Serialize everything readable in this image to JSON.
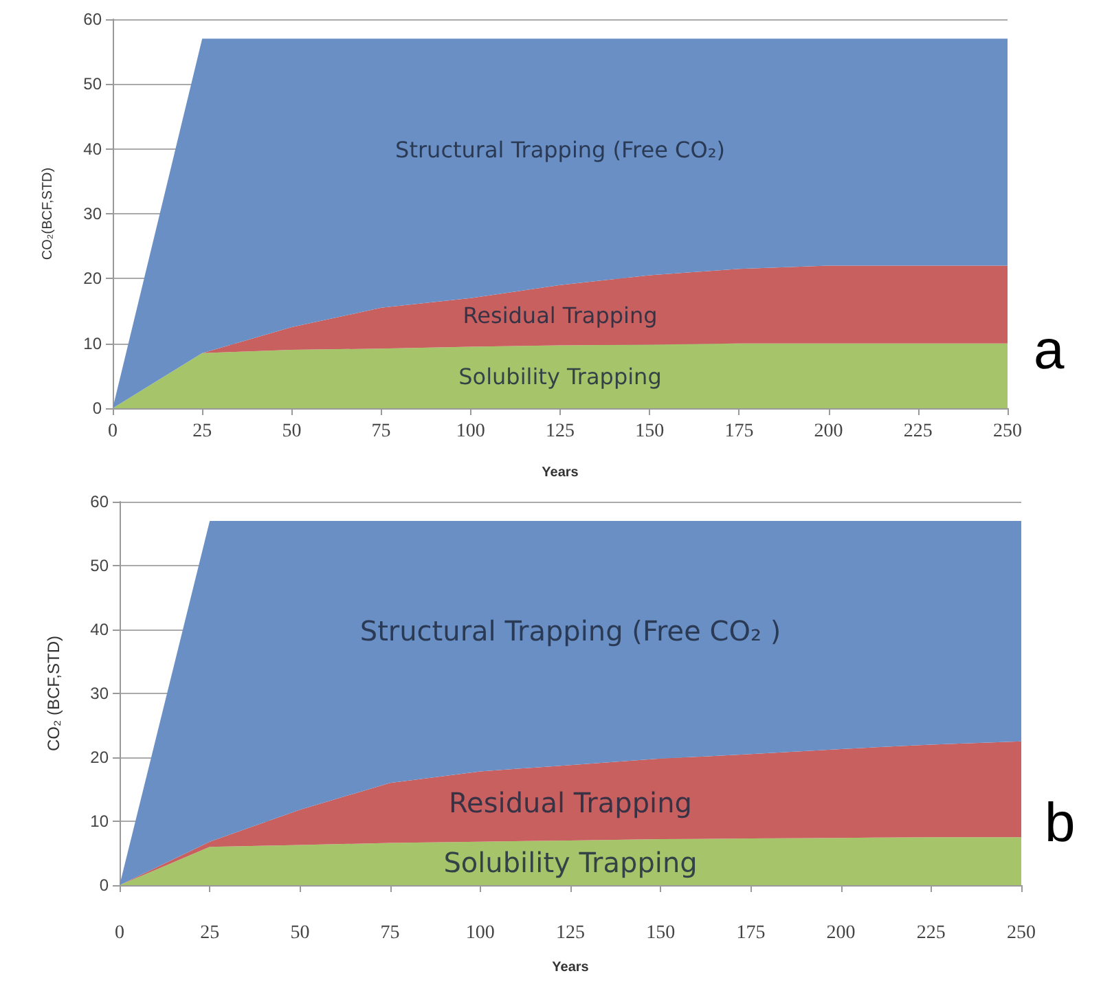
{
  "chart_data": [
    {
      "type": "area",
      "stacked": true,
      "xlabel": "Years",
      "ylabel": "CO₂(BCF,STD)",
      "annotations": [
        "a"
      ],
      "x": [
        0,
        25,
        50,
        75,
        100,
        125,
        150,
        175,
        200,
        225,
        250
      ],
      "xlim": [
        0,
        250
      ],
      "xticks": [
        0,
        25,
        50,
        75,
        100,
        125,
        150,
        175,
        200,
        225,
        250
      ],
      "ylim": [
        0,
        60
      ],
      "yticks": [
        0,
        10,
        20,
        30,
        40,
        50,
        60
      ],
      "grid": "y",
      "legend": false,
      "series": [
        {
          "name": "Solubility Trapping",
          "color": "#a6c56a",
          "values": [
            0,
            8.5,
            9,
            9.2,
            9.5,
            9.7,
            9.8,
            10,
            10,
            10,
            10
          ]
        },
        {
          "name": "Residual Trapping",
          "color": "#c96060",
          "values": [
            0,
            0,
            3.5,
            6.3,
            7.5,
            9.3,
            10.7,
            11.5,
            12,
            12,
            12
          ]
        },
        {
          "name": "Structural Trapping (Free CO₂)",
          "color": "#6a8fc5",
          "values": [
            0,
            48.5,
            44.5,
            41.5,
            40,
            38,
            36.5,
            35.5,
            35,
            35,
            35
          ]
        }
      ]
    },
    {
      "type": "area",
      "stacked": true,
      "xlabel": "Years",
      "ylabel": "CO₂ (BCF,STD)",
      "annotations": [
        "b"
      ],
      "x": [
        0,
        25,
        50,
        75,
        100,
        125,
        150,
        175,
        200,
        225,
        250
      ],
      "xlim": [
        0,
        250
      ],
      "xticks": [
        0,
        25,
        50,
        75,
        100,
        125,
        150,
        175,
        200,
        225,
        250
      ],
      "ylim": [
        0,
        60
      ],
      "yticks": [
        0,
        10,
        20,
        30,
        40,
        50,
        60
      ],
      "grid": "y",
      "legend": false,
      "series": [
        {
          "name": "Solubility Trapping",
          "color": "#a6c56a",
          "values": [
            0,
            6,
            6.3,
            6.6,
            6.8,
            7,
            7.2,
            7.3,
            7.4,
            7.5,
            7.5
          ]
        },
        {
          "name": "Residual Trapping",
          "color": "#c96060",
          "values": [
            0,
            0.8,
            5.5,
            9.4,
            11,
            11.8,
            12.6,
            13.2,
            13.9,
            14.5,
            15
          ]
        },
        {
          "name": "Structural Trapping (Free CO₂ )",
          "color": "#6a8fc5",
          "values": [
            0,
            50.2,
            45.2,
            41,
            39.2,
            38.2,
            37.2,
            36.5,
            35.7,
            35,
            34.5
          ]
        }
      ]
    }
  ]
}
